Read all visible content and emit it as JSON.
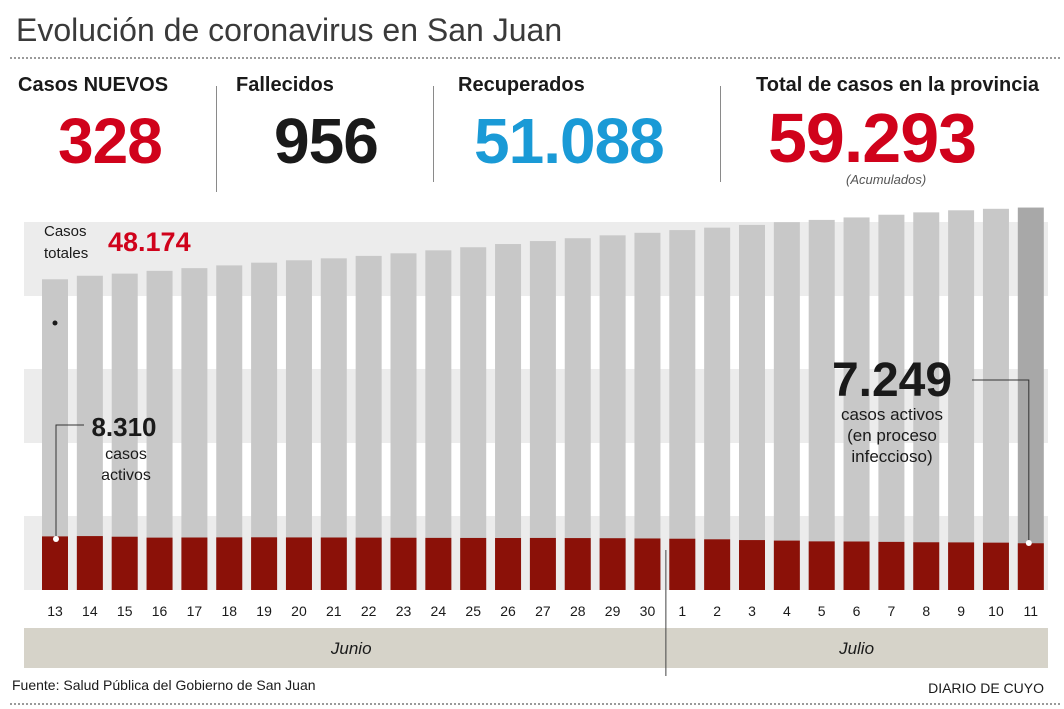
{
  "header": {
    "title": "Evolución de coronavirus en San Juan"
  },
  "stats": {
    "nuevos": {
      "label": "Casos NUEVOS",
      "value": "328",
      "color": "#d0021b"
    },
    "fallecidos": {
      "label": "Fallecidos",
      "value": "956",
      "color": "#1a1a1a"
    },
    "recuperados": {
      "label": "Recuperados",
      "value": "51.088",
      "color": "#1a9ad6"
    },
    "total": {
      "label": "Total de casos en la provincia",
      "value": "59.293",
      "color": "#d0021b",
      "note": "(Acumulados)"
    }
  },
  "chart_data": {
    "type": "bar",
    "categories": [
      "13",
      "14",
      "15",
      "16",
      "17",
      "18",
      "19",
      "20",
      "21",
      "22",
      "23",
      "24",
      "25",
      "26",
      "27",
      "28",
      "29",
      "30",
      "1",
      "2",
      "3",
      "4",
      "5",
      "6",
      "7",
      "8",
      "9",
      "10",
      "11"
    ],
    "series": [
      {
        "values": [
          48174,
          48720,
          49050,
          49480,
          49900,
          50330,
          50750,
          51120,
          51420,
          51800,
          52200,
          52660,
          53140,
          53640,
          54100,
          54540,
          54990,
          55380,
          55800,
          56180,
          56600,
          57030,
          57380,
          57760,
          58180,
          58550,
          58870,
          59100,
          59293
        ]
      },
      {
        "values": [
          8310,
          8360,
          8260,
          8120,
          8140,
          8160,
          8170,
          8150,
          8140,
          8120,
          8100,
          8080,
          8070,
          8060,
          8070,
          8050,
          8030,
          7990,
          7950,
          7860,
          7740,
          7660,
          7540,
          7520,
          7460,
          7400,
          7380,
          7340,
          7249
        ]
      }
    ],
    "annotations": {
      "totales_label_1": "Casos",
      "totales_label_2": "totales",
      "totales_value": "48.174",
      "activos_first_value": "8.310",
      "activos_first_label_1": "casos",
      "activos_first_label_2": "activos",
      "activos_last_value": "7.249",
      "activos_last_label_1": "casos activos",
      "activos_last_label_2": "(en proceso",
      "activos_last_label_3": "infeccioso)"
    },
    "months": [
      {
        "label": "Junio",
        "from": 0,
        "to": 17
      },
      {
        "label": "Julio",
        "from": 18,
        "to": 28
      }
    ],
    "ylim": [
      0,
      60000
    ],
    "colors": {
      "total": "#c8c8c8",
      "total_last": "#a8a8a8",
      "activos": "#8b1108",
      "band": "#ececec",
      "month_band": "#d6d3c9"
    }
  },
  "footer": {
    "source": "Fuente: Salud Pública del Gobierno de San Juan",
    "credit": "DIARIO DE CUYO"
  }
}
